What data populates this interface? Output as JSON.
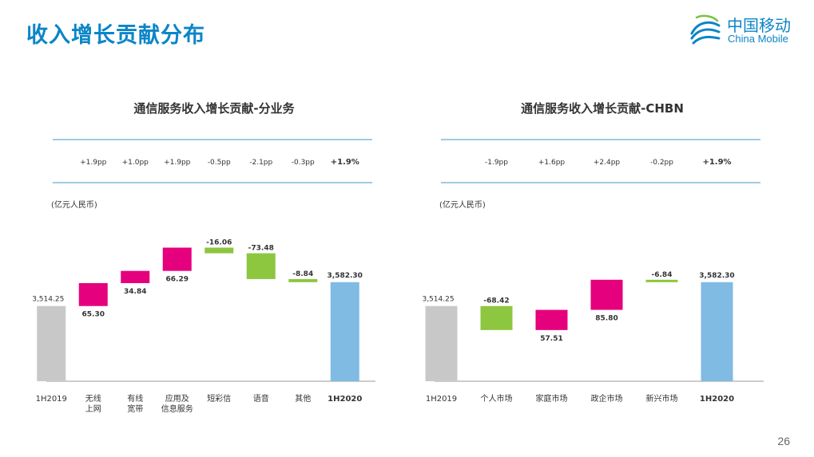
{
  "page": {
    "title": "收入增长贡献分布",
    "page_number": "26"
  },
  "logo": {
    "name_cn": "中国移动",
    "name_en": "China Mobile"
  },
  "colors": {
    "accent": "#0b85c8",
    "divider": "#7fb8d8",
    "base_bar": "#c8c8c8",
    "final_bar": "#7fbbe3",
    "negative_bar": "#8dc63f",
    "positive_bar": "#e5007e"
  },
  "chart_data": [
    {
      "type": "bar",
      "subtype": "waterfall",
      "title": "通信服务收入增长贡献-分业务",
      "unit_label": "(亿元人民币)",
      "categories": [
        "1H2019",
        "无线\n上网",
        "有线\n宽带",
        "应用及\n信息服务",
        "短彩信",
        "语音",
        "其他",
        "1H2020"
      ],
      "start_value": 3514.25,
      "start_label": "3,514.25",
      "deltas": [
        65.3,
        34.84,
        66.29,
        -16.06,
        -73.48,
        -8.84
      ],
      "delta_labels": [
        "65.30",
        "34.84",
        "66.29",
        "-16.06",
        "-73.48",
        "-8.84"
      ],
      "end_value": 3582.3,
      "end_label": "3,582.30",
      "pp_labels": [
        "+1.9pp",
        "+1.0pp",
        "+1.9pp",
        "-0.5pp",
        "-2.1pp",
        "-0.3pp",
        "+1.9%"
      ],
      "ylim": [
        3300,
        3750
      ]
    },
    {
      "type": "bar",
      "subtype": "waterfall",
      "title": "通信服务收入增长贡献-CHBN",
      "unit_label": "(亿元人民币)",
      "categories": [
        "1H2019",
        "个人市场",
        "家庭市场",
        "政企市场",
        "新兴市场",
        "1H2020"
      ],
      "start_value": 3514.25,
      "start_label": "3,514.25",
      "deltas": [
        -68.42,
        57.51,
        85.8,
        -6.84
      ],
      "delta_labels": [
        "-68.42",
        "57.51",
        "85.80",
        "-6.84"
      ],
      "end_value": 3582.3,
      "end_label": "3,582.30",
      "pp_labels": [
        "-1.9pp",
        "+1.6pp",
        "+2.4pp",
        "-0.2pp",
        "+1.9%"
      ],
      "ylim": [
        3300,
        3750
      ]
    }
  ]
}
